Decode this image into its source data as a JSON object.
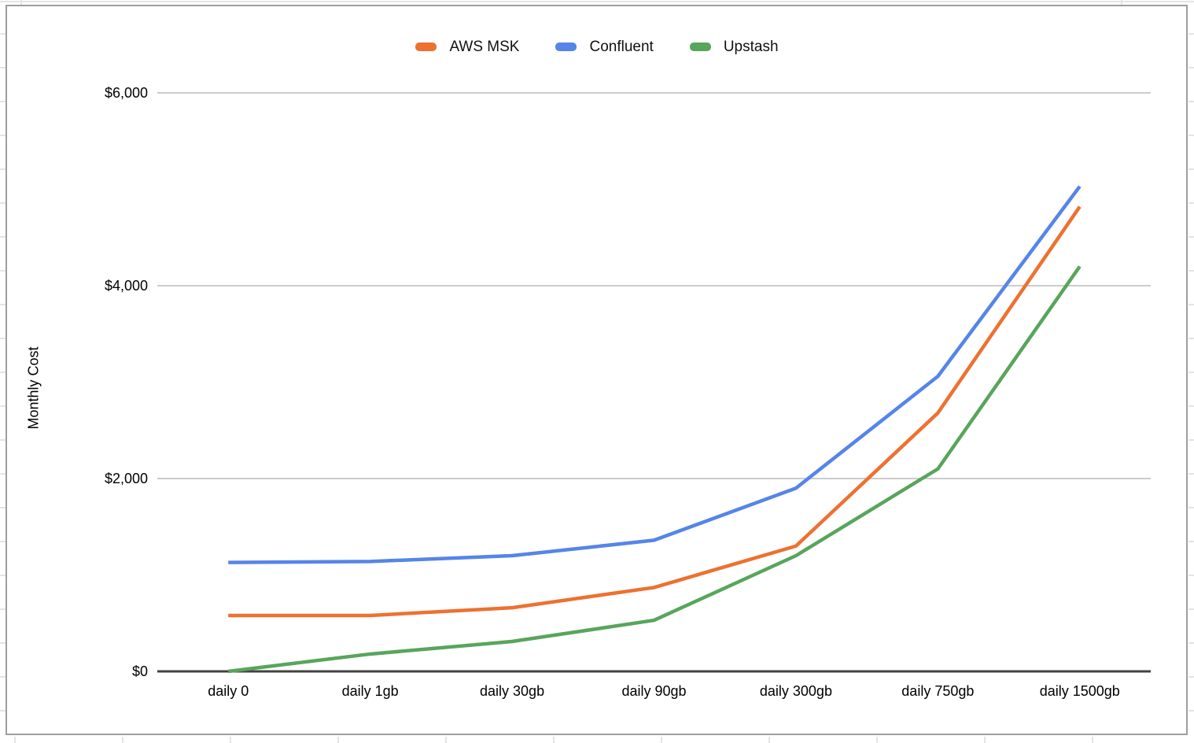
{
  "chart_data": {
    "type": "line",
    "title": "",
    "categories": [
      "daily 0",
      "daily 1gb",
      "daily 30gb",
      "daily 90gb",
      "daily 300gb",
      "daily 750gb",
      "daily 1500gb"
    ],
    "series": [
      {
        "name": "AWS MSK",
        "color": "#ED7131",
        "values": [
          580,
          580,
          660,
          870,
          1300,
          2680,
          4820
        ]
      },
      {
        "name": "Confluent",
        "color": "#5585E8",
        "values": [
          1130,
          1140,
          1200,
          1360,
          1900,
          3060,
          5030
        ]
      },
      {
        "name": "Upstash",
        "color": "#58A55C",
        "values": [
          0,
          180,
          310,
          530,
          1200,
          2100,
          4200
        ]
      }
    ],
    "xlabel": "",
    "ylabel": "Monthly Cost",
    "ylim": [
      0,
      6000
    ],
    "yticks": [
      0,
      2000,
      4000,
      6000
    ],
    "ytick_labels": [
      "$0",
      "$2,000",
      "$4,000",
      "$6,000"
    ],
    "grid": true,
    "legend_position": "top"
  },
  "ui_colors": {
    "gridline": "#cccccc",
    "axis_line": "#424242",
    "chart_border": "#9e9e9e",
    "sheet_line": "#e4e4e4",
    "text": "#000000",
    "background": "#ffffff"
  }
}
